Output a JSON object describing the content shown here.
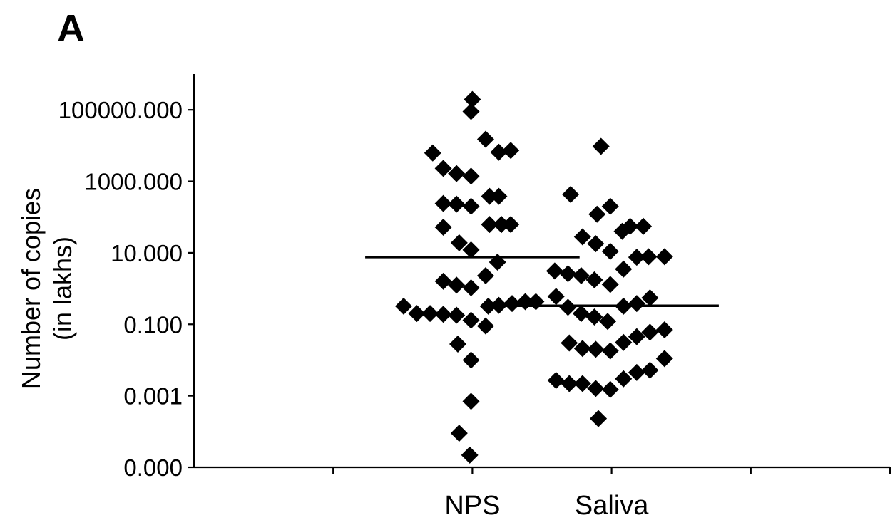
{
  "panel_label": "A",
  "chart_data": {
    "type": "scatter",
    "title": "",
    "xlabel": "",
    "ylabel_lines": [
      "Number of copies",
      "(in lakhs)"
    ],
    "y_scale": "log",
    "y_ticks": [
      {
        "value": 1e-05,
        "label": "0.000"
      },
      {
        "value": 0.001,
        "label": "0.001"
      },
      {
        "value": 0.1,
        "label": "0.100"
      },
      {
        "value": 10,
        "label": "10.000"
      },
      {
        "value": 1000,
        "label": "1000.000"
      },
      {
        "value": 100000,
        "label": "100000.000"
      }
    ],
    "ylim": [
      1e-05,
      1000000
    ],
    "categories": [
      "NPS",
      "Saliva"
    ],
    "series": [
      {
        "category": "NPS",
        "median": 7.6,
        "points": [
          {
            "x": 0.0,
            "y": 195000
          },
          {
            "x": -0.01,
            "y": 90000
          },
          {
            "x": -0.3,
            "y": 6200
          },
          {
            "x": 0.1,
            "y": 15000
          },
          {
            "x": 0.2,
            "y": 6500
          },
          {
            "x": 0.29,
            "y": 7300
          },
          {
            "x": -0.22,
            "y": 2300
          },
          {
            "x": -0.12,
            "y": 1650
          },
          {
            "x": -0.01,
            "y": 1400
          },
          {
            "x": -0.22,
            "y": 240
          },
          {
            "x": -0.12,
            "y": 230
          },
          {
            "x": -0.01,
            "y": 200
          },
          {
            "x": 0.13,
            "y": 380
          },
          {
            "x": 0.2,
            "y": 380
          },
          {
            "x": -0.22,
            "y": 52
          },
          {
            "x": 0.13,
            "y": 62
          },
          {
            "x": 0.22,
            "y": 62
          },
          {
            "x": 0.29,
            "y": 62
          },
          {
            "x": -0.1,
            "y": 19
          },
          {
            "x": -0.01,
            "y": 12
          },
          {
            "x": 0.19,
            "y": 5.5
          },
          {
            "x": 0.1,
            "y": 2.3
          },
          {
            "x": -0.22,
            "y": 1.6
          },
          {
            "x": -0.12,
            "y": 1.25
          },
          {
            "x": -0.01,
            "y": 1.05
          },
          {
            "x": -0.52,
            "y": 0.32
          },
          {
            "x": -0.42,
            "y": 0.2
          },
          {
            "x": -0.32,
            "y": 0.2
          },
          {
            "x": -0.22,
            "y": 0.19
          },
          {
            "x": -0.12,
            "y": 0.18
          },
          {
            "x": -0.01,
            "y": 0.13
          },
          {
            "x": 0.1,
            "y": 0.09
          },
          {
            "x": 0.12,
            "y": 0.32
          },
          {
            "x": 0.2,
            "y": 0.34
          },
          {
            "x": 0.3,
            "y": 0.38
          },
          {
            "x": 0.4,
            "y": 0.43
          },
          {
            "x": 0.48,
            "y": 0.43
          },
          {
            "x": -0.11,
            "y": 0.028
          },
          {
            "x": -0.01,
            "y": 0.01
          },
          {
            "x": -0.01,
            "y": 0.0007
          },
          {
            "x": -0.1,
            "y": 9e-05
          },
          {
            "x": -0.02,
            "y": 2.2e-05
          }
        ]
      },
      {
        "category": "Saliva",
        "median": 0.33,
        "points": [
          {
            "x": -0.08,
            "y": 9500
          },
          {
            "x": -0.31,
            "y": 430
          },
          {
            "x": -0.01,
            "y": 200
          },
          {
            "x": -0.11,
            "y": 120
          },
          {
            "x": 0.24,
            "y": 55
          },
          {
            "x": 0.14,
            "y": 55
          },
          {
            "x": 0.08,
            "y": 40
          },
          {
            "x": -0.22,
            "y": 28
          },
          {
            "x": -0.12,
            "y": 18
          },
          {
            "x": -0.01,
            "y": 11
          },
          {
            "x": 0.19,
            "y": 7.5
          },
          {
            "x": 0.28,
            "y": 7.8
          },
          {
            "x": 0.4,
            "y": 7.8
          },
          {
            "x": 0.09,
            "y": 3.5
          },
          {
            "x": -0.43,
            "y": 3.1
          },
          {
            "x": -0.33,
            "y": 2.6
          },
          {
            "x": -0.23,
            "y": 2.3
          },
          {
            "x": -0.13,
            "y": 1.75
          },
          {
            "x": -0.01,
            "y": 1.3
          },
          {
            "x": -0.42,
            "y": 0.6
          },
          {
            "x": -0.33,
            "y": 0.3
          },
          {
            "x": -0.23,
            "y": 0.2
          },
          {
            "x": -0.13,
            "y": 0.16
          },
          {
            "x": -0.03,
            "y": 0.12
          },
          {
            "x": 0.09,
            "y": 0.32
          },
          {
            "x": 0.19,
            "y": 0.38
          },
          {
            "x": 0.29,
            "y": 0.55
          },
          {
            "x": -0.32,
            "y": 0.03
          },
          {
            "x": -0.22,
            "y": 0.021
          },
          {
            "x": -0.12,
            "y": 0.02
          },
          {
            "x": -0.01,
            "y": 0.018
          },
          {
            "x": 0.09,
            "y": 0.031
          },
          {
            "x": 0.19,
            "y": 0.045
          },
          {
            "x": 0.29,
            "y": 0.06
          },
          {
            "x": 0.4,
            "y": 0.07
          },
          {
            "x": -0.42,
            "y": 0.0027
          },
          {
            "x": -0.32,
            "y": 0.0022
          },
          {
            "x": -0.22,
            "y": 0.0022
          },
          {
            "x": -0.12,
            "y": 0.0016
          },
          {
            "x": -0.01,
            "y": 0.0015
          },
          {
            "x": 0.09,
            "y": 0.003
          },
          {
            "x": 0.19,
            "y": 0.0045
          },
          {
            "x": 0.29,
            "y": 0.0052
          },
          {
            "x": 0.4,
            "y": 0.011
          },
          {
            "x": -0.1,
            "y": 0.00023
          }
        ]
      }
    ],
    "grid": false,
    "legend": "none",
    "colors": {
      "marker": "#000000",
      "median_line": "#000000"
    }
  }
}
